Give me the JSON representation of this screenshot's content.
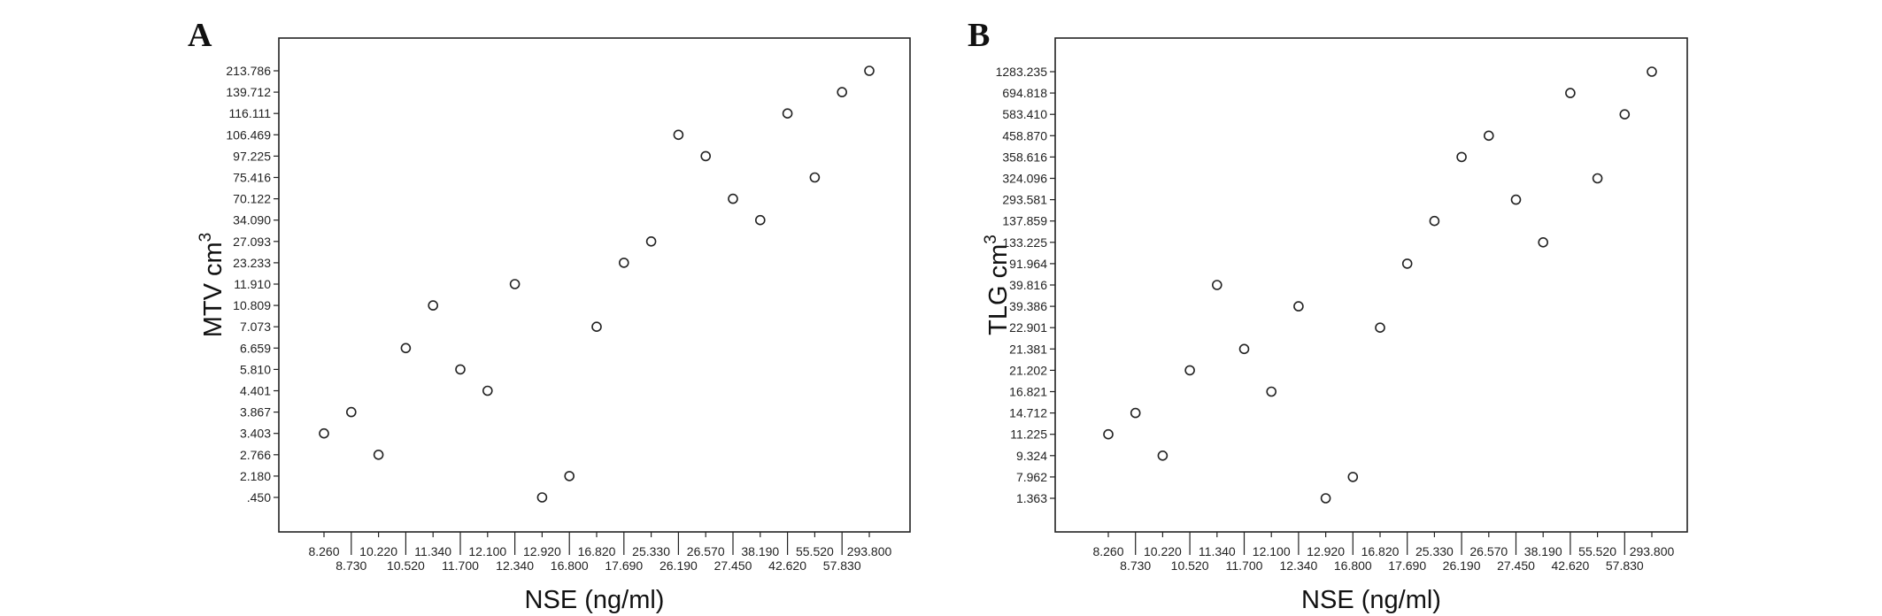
{
  "chart_data": [
    {
      "type": "scatter",
      "panel_label": "A",
      "xlabel": "NSE (ng/ml)",
      "ylabel": "MTV cm",
      "ylabel_sup": "3",
      "x_categories": [
        "8.260",
        "8.730",
        "10.220",
        "10.520",
        "11.340",
        "11.700",
        "12.100",
        "12.340",
        "12.920",
        "16.800",
        "16.820",
        "17.690",
        "25.330",
        "26.190",
        "26.570",
        "27.450",
        "38.190",
        "42.620",
        "55.520",
        "57.830",
        "293.800"
      ],
      "y_categories": [
        ".450",
        "2.180",
        "2.766",
        "3.403",
        "3.867",
        "4.401",
        "5.810",
        "6.659",
        "7.073",
        "10.809",
        "11.910",
        "23.233",
        "27.093",
        "34.090",
        "70.122",
        "75.416",
        "97.225",
        "106.469",
        "116.111",
        "139.712",
        "213.786"
      ],
      "points": [
        {
          "x": "8.260",
          "y": "3.403"
        },
        {
          "x": "8.730",
          "y": "3.867"
        },
        {
          "x": "10.220",
          "y": "2.766"
        },
        {
          "x": "10.520",
          "y": "6.659"
        },
        {
          "x": "11.340",
          "y": "10.809"
        },
        {
          "x": "11.700",
          "y": "5.810"
        },
        {
          "x": "12.100",
          "y": "4.401"
        },
        {
          "x": "12.340",
          "y": "11.910"
        },
        {
          "x": "12.920",
          "y": ".450"
        },
        {
          "x": "16.800",
          "y": "2.180"
        },
        {
          "x": "16.820",
          "y": "7.073"
        },
        {
          "x": "17.690",
          "y": "23.233"
        },
        {
          "x": "25.330",
          "y": "27.093"
        },
        {
          "x": "26.190",
          "y": "106.469"
        },
        {
          "x": "26.570",
          "y": "97.225"
        },
        {
          "x": "27.450",
          "y": "70.122"
        },
        {
          "x": "38.190",
          "y": "34.090"
        },
        {
          "x": "42.620",
          "y": "116.111"
        },
        {
          "x": "55.520",
          "y": "75.416"
        },
        {
          "x": "57.830",
          "y": "139.712"
        },
        {
          "x": "293.800",
          "y": "213.786"
        }
      ]
    },
    {
      "type": "scatter",
      "panel_label": "B",
      "xlabel": "NSE (ng/ml)",
      "ylabel": "TLG cm",
      "ylabel_sup": "3",
      "x_categories": [
        "8.260",
        "8.730",
        "10.220",
        "10.520",
        "11.340",
        "11.700",
        "12.100",
        "12.340",
        "12.920",
        "16.800",
        "16.820",
        "17.690",
        "25.330",
        "26.190",
        "26.570",
        "27.450",
        "38.190",
        "42.620",
        "55.520",
        "57.830",
        "293.800"
      ],
      "y_categories": [
        "1.363",
        "7.962",
        "9.324",
        "11.225",
        "14.712",
        "16.821",
        "21.202",
        "21.381",
        "22.901",
        "39.386",
        "39.816",
        "91.964",
        "133.225",
        "137.859",
        "293.581",
        "324.096",
        "358.616",
        "458.870",
        "583.410",
        "694.818",
        "1283.235"
      ],
      "points": [
        {
          "x": "8.260",
          "y": "11.225"
        },
        {
          "x": "8.730",
          "y": "14.712"
        },
        {
          "x": "10.220",
          "y": "9.324"
        },
        {
          "x": "10.520",
          "y": "21.202"
        },
        {
          "x": "11.340",
          "y": "39.816"
        },
        {
          "x": "11.700",
          "y": "21.381"
        },
        {
          "x": "12.100",
          "y": "16.821"
        },
        {
          "x": "12.340",
          "y": "39.386"
        },
        {
          "x": "12.920",
          "y": "1.363"
        },
        {
          "x": "16.800",
          "y": "7.962"
        },
        {
          "x": "16.820",
          "y": "22.901"
        },
        {
          "x": "17.690",
          "y": "91.964"
        },
        {
          "x": "25.330",
          "y": "137.859"
        },
        {
          "x": "26.190",
          "y": "358.616"
        },
        {
          "x": "26.570",
          "y": "458.870"
        },
        {
          "x": "27.450",
          "y": "293.581"
        },
        {
          "x": "38.190",
          "y": "133.225"
        },
        {
          "x": "42.620",
          "y": "694.818"
        },
        {
          "x": "55.520",
          "y": "324.096"
        },
        {
          "x": "57.830",
          "y": "583.410"
        },
        {
          "x": "293.800",
          "y": "1283.235"
        }
      ]
    }
  ]
}
